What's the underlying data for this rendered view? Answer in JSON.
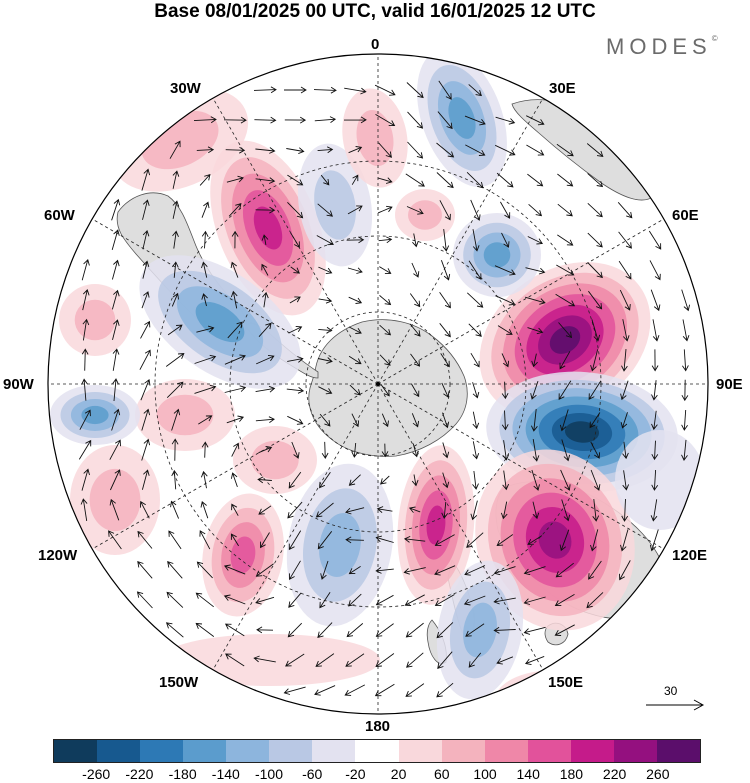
{
  "title": "Base 08/01/2025 00 UTC, valid 16/01/2025 12 UTC",
  "brand": "MODES",
  "brand_mark": "©",
  "longitude_labels": {
    "top": "0",
    "upper_left": "30W",
    "upper_right": "30E",
    "left_upper": "60W",
    "right_upper": "60E",
    "left": "90W",
    "right": "90E",
    "left_lower": "120W",
    "right_lower": "120E",
    "lower_left": "150W",
    "lower_right": "150E",
    "bottom": "180"
  },
  "vector_scale_label": "30",
  "colorbar": {
    "colors": [
      "#0f3b5c",
      "#17598f",
      "#2d79b5",
      "#5b9ccd",
      "#8db5dd",
      "#b9c8e4",
      "#e3e2f0",
      "#ffffff",
      "#f9d8dc",
      "#f4b3be",
      "#ef87a8",
      "#e2529b",
      "#c51b8a",
      "#94107f",
      "#5b0e6b"
    ],
    "tick_labels": [
      "-260",
      "-220",
      "-180",
      "-140",
      "-100",
      "-60",
      "-20",
      "20",
      "60",
      "100",
      "140",
      "180",
      "220",
      "260"
    ]
  },
  "colors": {
    "land": "#dedede",
    "coast": "#555555",
    "grid": "#222222",
    "arrow": "#111111"
  }
}
